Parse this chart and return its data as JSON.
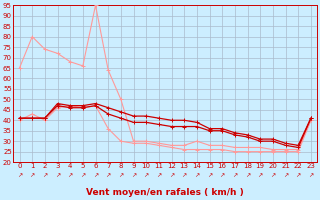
{
  "title": "",
  "xlabel": "Vent moyen/en rafales ( km/h )",
  "bg_color": "#cceeff",
  "grid_color": "#aabbcc",
  "line_color_light": "#ff9999",
  "line_color_dark": "#cc0000",
  "ylim": [
    20,
    95
  ],
  "xlim": [
    -0.5,
    23.5
  ],
  "yticks": [
    20,
    25,
    30,
    35,
    40,
    45,
    50,
    55,
    60,
    65,
    70,
    75,
    80,
    85,
    90,
    95
  ],
  "xticks": [
    0,
    1,
    2,
    3,
    4,
    5,
    6,
    7,
    8,
    9,
    10,
    11,
    12,
    13,
    14,
    15,
    16,
    17,
    18,
    19,
    20,
    21,
    22,
    23
  ],
  "series_light_1_x": [
    0,
    1,
    2,
    3,
    4,
    5,
    6,
    7,
    8,
    9,
    10,
    11,
    12,
    13,
    14,
    15,
    16,
    17,
    18,
    19,
    20,
    21,
    22,
    23
  ],
  "series_light_1_y": [
    65,
    80,
    74,
    72,
    68,
    66,
    95,
    64,
    50,
    30,
    30,
    29,
    28,
    28,
    30,
    28,
    28,
    27,
    27,
    27,
    26,
    26,
    26,
    40
  ],
  "series_light_2_x": [
    0,
    1,
    2,
    3,
    4,
    5,
    6,
    7,
    8,
    9,
    10,
    11,
    12,
    13,
    14,
    15,
    16,
    17,
    18,
    19,
    20,
    21,
    22,
    23
  ],
  "series_light_2_y": [
    40,
    43,
    40,
    46,
    47,
    46,
    47,
    36,
    30,
    29,
    29,
    28,
    27,
    26,
    26,
    26,
    26,
    25,
    25,
    25,
    25,
    25,
    25,
    40
  ],
  "series_dark_1_x": [
    0,
    1,
    2,
    3,
    4,
    5,
    6,
    7,
    8,
    9,
    10,
    11,
    12,
    13,
    14,
    15,
    16,
    17,
    18,
    19,
    20,
    21,
    22,
    23
  ],
  "series_dark_1_y": [
    41,
    41,
    41,
    48,
    47,
    47,
    48,
    46,
    44,
    42,
    42,
    41,
    40,
    40,
    39,
    36,
    36,
    34,
    33,
    31,
    31,
    29,
    28,
    41
  ],
  "series_dark_2_x": [
    0,
    1,
    2,
    3,
    4,
    5,
    6,
    7,
    8,
    9,
    10,
    11,
    12,
    13,
    14,
    15,
    16,
    17,
    18,
    19,
    20,
    21,
    22,
    23
  ],
  "series_dark_2_y": [
    41,
    41,
    41,
    47,
    46,
    46,
    47,
    43,
    41,
    39,
    39,
    38,
    37,
    37,
    37,
    35,
    35,
    33,
    32,
    30,
    30,
    28,
    27,
    41
  ],
  "tick_fontsize": 5,
  "xlabel_fontsize": 6.5
}
